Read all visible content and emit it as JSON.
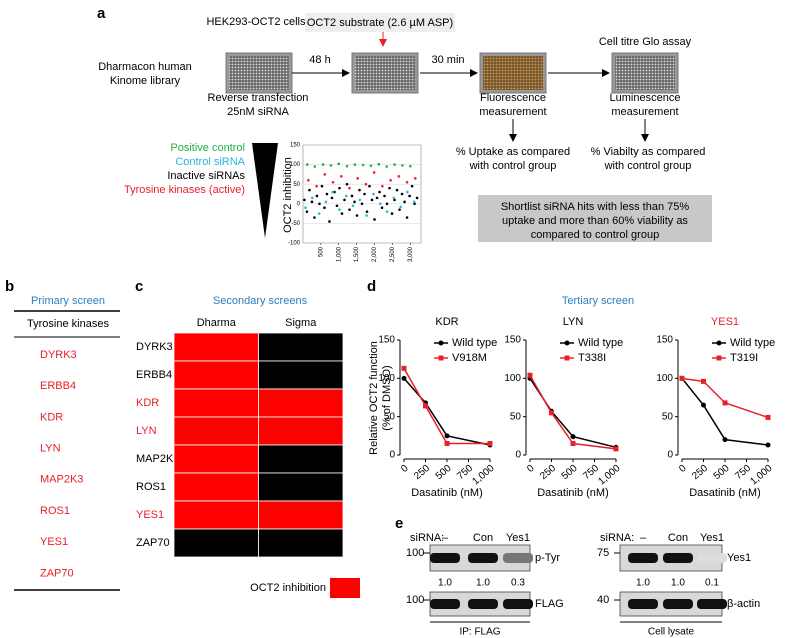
{
  "panel_a": {
    "label": "a",
    "cells_label": "HEK293-OCT2 cells",
    "substrate": "OCT2 substrate (2.6 µM ASP)",
    "library": [
      "Dharmacon human",
      "Kinome library"
    ],
    "step1": "48 h",
    "step2": "30 min",
    "assay": "Cell titre Glo assay",
    "transfection": [
      "Reverse transfection",
      "25nM siRNA"
    ],
    "fluorescence": [
      "Fluorescence",
      "measurement"
    ],
    "luminescence": [
      "Luminescence",
      "measurement"
    ],
    "uptake": [
      "% Uptake as compared",
      "with control group"
    ],
    "viability": [
      "% Viabilty as compared",
      "with control group"
    ],
    "shortlist": [
      "Shortlist siRNA hits with less than 75%",
      "uptake and more than 60% viability as",
      "compared to control group"
    ],
    "chart": {
      "type": "scatter",
      "ylabel": "OCT2 inhibition",
      "xlim": [
        0,
        3300
      ],
      "ylim": [
        -100,
        150
      ],
      "xticks": [
        500,
        {
          "value": 1000,
          "label": "1,000"
        },
        {
          "value": 1500,
          "label": "1,500"
        },
        {
          "value": 2000,
          "label": "2,000"
        },
        {
          "value": 2500,
          "label": "2,500"
        },
        {
          "value": 3000,
          "label": "3,000"
        }
      ],
      "yticks": [
        -100,
        -50,
        0,
        50,
        100,
        150
      ],
      "series": [
        {
          "name": "Positive control",
          "color": "#22b04a",
          "x": [
            120,
            330,
            560,
            780,
            1000,
            1230,
            1450,
            1680,
            1900,
            2120,
            2340,
            2560,
            2780,
            3000
          ],
          "values": [
            100,
            95,
            100,
            98,
            102,
            96,
            100,
            99,
            97,
            101,
            95,
            100,
            98,
            96
          ]
        },
        {
          "name": "Control siRNA",
          "color": "#29b6d8",
          "x": [
            70,
            260,
            450,
            640,
            830,
            1020,
            1210,
            1400,
            1590,
            1780,
            1970,
            2160,
            2350,
            2540,
            2730,
            2920,
            3110
          ],
          "values": [
            -10,
            15,
            -25,
            5,
            30,
            -15,
            20,
            -5,
            10,
            -30,
            25,
            0,
            -20,
            15,
            -8,
            30,
            5
          ]
        },
        {
          "name": "Inactive siRNAs",
          "color": "#000000",
          "x": [
            40,
            110,
            180,
            250,
            320,
            390,
            460,
            530,
            600,
            670,
            740,
            810,
            880,
            950,
            1020,
            1090,
            1160,
            1230,
            1300,
            1370,
            1440,
            1510,
            1580,
            1650,
            1720,
            1790,
            1860,
            1930,
            2000,
            2070,
            2140,
            2210,
            2280,
            2350,
            2420,
            2490,
            2560,
            2630,
            2700,
            2770,
            2840,
            2910,
            2980,
            3050,
            3120,
            3190
          ],
          "values": [
            10,
            -20,
            35,
            5,
            -35,
            20,
            0,
            45,
            -10,
            25,
            -45,
            15,
            30,
            -5,
            40,
            -25,
            10,
            50,
            -15,
            20,
            5,
            -30,
            35,
            0,
            25,
            -20,
            45,
            10,
            -40,
            15,
            30,
            -10,
            20,
            0,
            40,
            -25,
            10,
            35,
            -15,
            25,
            5,
            -35,
            20,
            45,
            0,
            15
          ]
        },
        {
          "name": "Tyrosine kinases (active)",
          "color": "#e8202a",
          "x": [
            150,
            380,
            610,
            840,
            1070,
            1300,
            1530,
            1760,
            1990,
            2220,
            2450,
            2680,
            2910,
            3140
          ],
          "values": [
            60,
            45,
            75,
            55,
            70,
            40,
            65,
            50,
            80,
            45,
            60,
            70,
            55,
            65
          ]
        }
      ]
    }
  },
  "panel_b": {
    "label": "b",
    "title": "Primary screen",
    "title_color": "#2a7fc1",
    "header": "Tyrosine kinases",
    "rows": [
      "DYRK3",
      "ERBB4",
      "KDR",
      "LYN",
      "MAP2K3",
      "ROS1",
      "YES1",
      "ZAP70"
    ],
    "row_color": "#e8202a"
  },
  "panel_c": {
    "label": "c",
    "title": "Secondary screens",
    "title_color": "#2a7fc1",
    "columns": [
      "Dharma",
      "Sigma"
    ],
    "rows": [
      "DYRK3",
      "ERBB4",
      "KDR",
      "LYN",
      "MAP2K3",
      "ROS1",
      "YES1",
      "ZAP70"
    ],
    "values": [
      [
        1,
        0
      ],
      [
        1,
        0
      ],
      [
        1,
        1
      ],
      [
        1,
        1
      ],
      [
        1,
        0
      ],
      [
        1,
        0
      ],
      [
        1,
        1
      ],
      [
        0,
        0
      ]
    ],
    "colors": [
      "#000000",
      "#ff0000"
    ],
    "hit_label_color": "#e8202a",
    "legend": "OCT2 inhibition"
  },
  "panel_d": {
    "label": "d",
    "title": "Tertiary screen",
    "title_color": "#2a7fc1",
    "ylabel": [
      "Relative OCT2 function",
      "(% of DMSO)"
    ],
    "charts": [
      {
        "type": "line",
        "title": "KDR",
        "title_color": "#000000",
        "xlabel": "Dasatinib (nM)",
        "x": [
          0,
          250,
          500,
          1000
        ],
        "xlim": [
          0,
          1000
        ],
        "ylim": [
          0,
          150
        ],
        "xticks": [
          0,
          250,
          500,
          750,
          {
            "value": 1000,
            "label": "1,000"
          }
        ],
        "yticks": [
          0,
          50,
          100,
          150
        ],
        "series": [
          {
            "name": "Wild type",
            "color": "#000000",
            "marker": "circle",
            "values": [
              100,
              68,
              25,
              13
            ]
          },
          {
            "name": "V918M",
            "color": "#e8202a",
            "marker": "square",
            "values": [
              113,
              64,
              15,
              15
            ]
          }
        ]
      },
      {
        "type": "line",
        "title": "LYN",
        "title_color": "#000000",
        "xlabel": "Dasatinib (nM)",
        "x": [
          0,
          250,
          500,
          1000
        ],
        "xlim": [
          0,
          1000
        ],
        "ylim": [
          0,
          150
        ],
        "xticks": [
          0,
          250,
          500,
          750,
          {
            "value": 1000,
            "label": "1,000"
          }
        ],
        "yticks": [
          0,
          50,
          100,
          150
        ],
        "series": [
          {
            "name": "Wild type",
            "color": "#000000",
            "marker": "circle",
            "values": [
              100,
              57,
              24,
              10
            ]
          },
          {
            "name": "T338I",
            "color": "#e8202a",
            "marker": "square",
            "values": [
              104,
              55,
              15,
              8
            ]
          }
        ]
      },
      {
        "type": "line",
        "title": "YES1",
        "title_color": "#e8202a",
        "xlabel": "Dasatinib (nM)",
        "x": [
          0,
          250,
          500,
          1000
        ],
        "xlim": [
          0,
          1000
        ],
        "ylim": [
          0,
          150
        ],
        "xticks": [
          0,
          250,
          500,
          750,
          {
            "value": 1000,
            "label": "1,000"
          }
        ],
        "yticks": [
          0,
          50,
          100,
          150
        ],
        "series": [
          {
            "name": "Wild type",
            "color": "#000000",
            "marker": "circle",
            "values": [
              100,
              65,
              20,
              13
            ]
          },
          {
            "name": "T319I",
            "color": "#e8202a",
            "marker": "square",
            "values": [
              100,
              96,
              68,
              49
            ]
          }
        ]
      }
    ]
  },
  "panel_e": {
    "label": "e",
    "blots": [
      {
        "sirna": "siRNA:",
        "lanes": [
          "–",
          "Con",
          "Yes1"
        ],
        "rows": [
          {
            "mw": "100",
            "name": "p-Tyr",
            "quant": [
              "1.0",
              "1.0",
              "0.3"
            ]
          },
          {
            "mw": "100",
            "name": "FLAG"
          }
        ],
        "footer": "IP: FLAG"
      },
      {
        "sirna": "siRNA:",
        "lanes": [
          "–",
          "Con",
          "Yes1"
        ],
        "rows": [
          {
            "mw": "75",
            "name": "Yes1",
            "quant": [
              "1.0",
              "1.0",
              "0.1"
            ]
          },
          {
            "mw": "40",
            "name": "β-actin"
          }
        ],
        "footer": "Cell lysate"
      }
    ]
  }
}
